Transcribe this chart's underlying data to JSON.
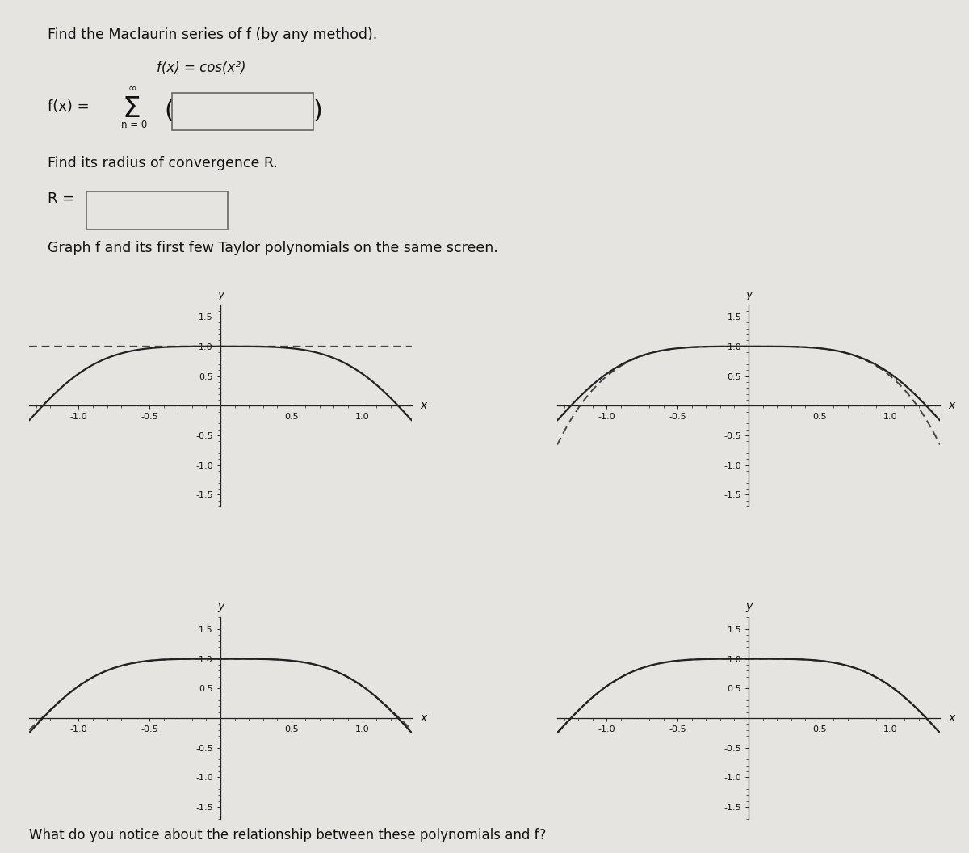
{
  "title_text": "Find the Maclaurin series of f (by any method).",
  "fx_text": "f(x) = cos(x²)",
  "radius_text": "Find its radius of convergence R.",
  "graph_text": "Graph f and its first few Taylor polynomials on the same screen.",
  "bottom_text": "What do you notice about the relationship between these polynomials and f?",
  "bg_color": "#e6e4e1",
  "solid_color": "#222222",
  "dashed_color": "#444444",
  "axis_color": "#222222",
  "plots": [
    {
      "xlim": [
        -1.35,
        1.35
      ],
      "ylim": [
        -1.7,
        1.7
      ],
      "poly_order": 0,
      "xticks": [
        -1.0,
        -0.5,
        0.5,
        1.0
      ],
      "yticks": [
        -1.5,
        -1.0,
        -0.5,
        0.5,
        1.0,
        1.5
      ],
      "xticklabels": [
        "-1.0",
        "-0.5",
        "0.5",
        "1.0"
      ],
      "yticklabels": [
        "-1.5",
        "-1.0",
        "-0.5",
        "0.5",
        "1.0",
        "1.5"
      ]
    },
    {
      "xlim": [
        -1.35,
        1.35
      ],
      "ylim": [
        -1.7,
        1.7
      ],
      "poly_order": 1,
      "xticks": [
        -1.0,
        -0.5,
        0.5,
        1.0
      ],
      "yticks": [
        -1.5,
        -1.0,
        -0.5,
        0.5,
        1.0,
        1.5
      ],
      "xticklabels": [
        "-1.0",
        "-0.5",
        "0.5",
        "1.0"
      ],
      "yticklabels": [
        "-1.5",
        "-1.0",
        "-0.5",
        "0.5",
        "1.0",
        "1.5"
      ]
    },
    {
      "xlim": [
        -1.35,
        1.35
      ],
      "ylim": [
        -1.7,
        1.7
      ],
      "poly_order": 2,
      "xticks": [
        -1.0,
        -0.5,
        0.5,
        1.0
      ],
      "yticks": [
        -1.5,
        -1.0,
        -0.5,
        0.5,
        1.0,
        1.5
      ],
      "xticklabels": [
        "-1.0",
        "-0.5",
        "0.5",
        "1.0"
      ],
      "yticklabels": [
        "-1.5",
        "-1.0",
        "-0.5",
        "0.5",
        "1.0",
        "1.5"
      ]
    },
    {
      "xlim": [
        -1.35,
        1.35
      ],
      "ylim": [
        -1.7,
        1.7
      ],
      "poly_order": 3,
      "xticks": [
        -1.0,
        -0.5,
        0.5,
        1.0
      ],
      "yticks": [
        -1.5,
        -1.0,
        -0.5,
        0.5,
        1.0,
        1.5
      ],
      "xticklabels": [
        "-1.0",
        "-0.5",
        "0.5",
        "1.0"
      ],
      "yticklabels": [
        "-1.5",
        "-1.0",
        "-0.5",
        "0.5",
        "1.0",
        "1.5"
      ]
    }
  ]
}
